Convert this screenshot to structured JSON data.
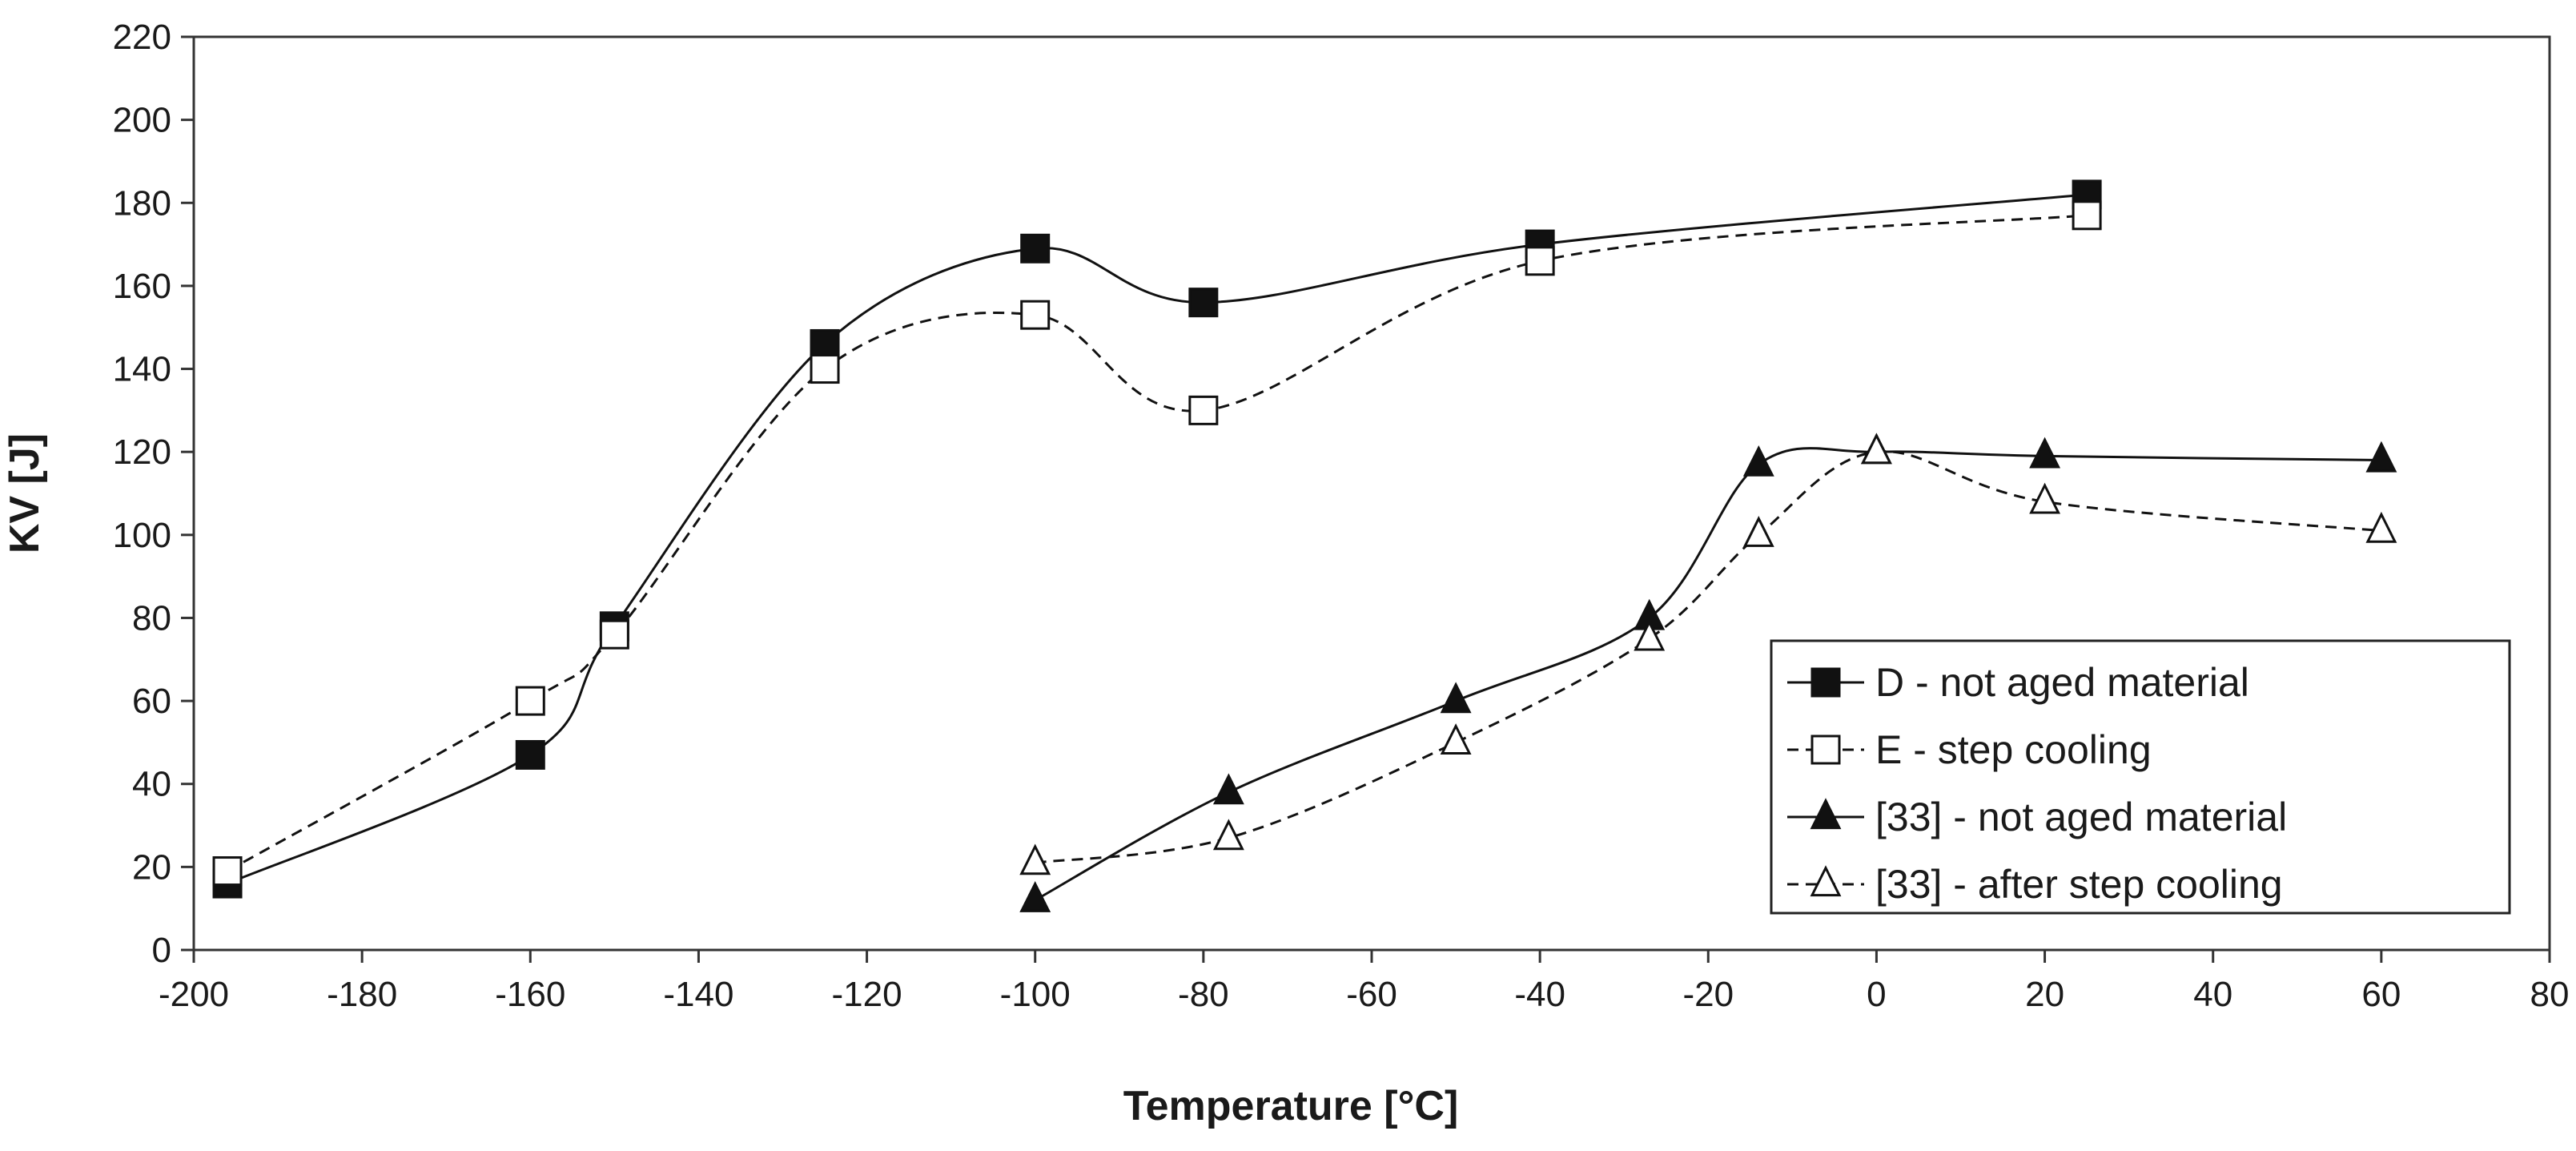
{
  "chart_data": {
    "type": "line",
    "title": "",
    "xlabel": "Temperature [°C]",
    "ylabel": "KV [J]",
    "xlim": [
      -200,
      80
    ],
    "ylim": [
      0,
      220
    ],
    "xticks": [
      -200,
      -180,
      -160,
      -140,
      -120,
      -100,
      -80,
      -60,
      -40,
      -20,
      0,
      20,
      40,
      60,
      80
    ],
    "yticks": [
      0,
      20,
      40,
      60,
      80,
      100,
      120,
      140,
      160,
      180,
      200,
      220
    ],
    "xtick_labels": [
      "-200",
      "-180",
      "-160",
      "-140",
      "-120",
      "-100",
      "-80",
      "-60",
      "-40",
      "-20",
      "0",
      "20",
      "40",
      "60",
      "80"
    ],
    "ytick_labels": [
      "0",
      "20",
      "40",
      "60",
      "80",
      "100",
      "120",
      "140",
      "160",
      "180",
      "200",
      "220"
    ],
    "grid": false,
    "legend_position": "bottom-right",
    "series": [
      {
        "name": "D - not aged material",
        "marker": "square-filled",
        "line": "solid",
        "x": [
          -196,
          -160,
          -150,
          -125,
          -100,
          -80,
          -40,
          25
        ],
        "y": [
          16,
          47,
          78,
          146,
          169,
          156,
          170,
          182
        ]
      },
      {
        "name": "E - step cooling",
        "marker": "square-open",
        "line": "dashed",
        "x": [
          -196,
          -160,
          -150,
          -125,
          -100,
          -80,
          -40,
          25
        ],
        "y": [
          19,
          60,
          76,
          140,
          153,
          130,
          166,
          177
        ]
      },
      {
        "name": "[33] - not aged material",
        "marker": "triangle-filled",
        "line": "solid",
        "x": [
          -100,
          -77,
          -50,
          -27,
          -14,
          0,
          20,
          60
        ],
        "y": [
          12,
          38,
          60,
          80,
          117,
          120,
          119,
          118
        ]
      },
      {
        "name": "[33] - after step cooling",
        "marker": "triangle-open",
        "line": "dashed",
        "x": [
          -100,
          -77,
          -50,
          -27,
          -14,
          0,
          20,
          60
        ],
        "y": [
          21,
          27,
          50,
          75,
          100,
          120,
          108,
          101
        ]
      }
    ]
  }
}
